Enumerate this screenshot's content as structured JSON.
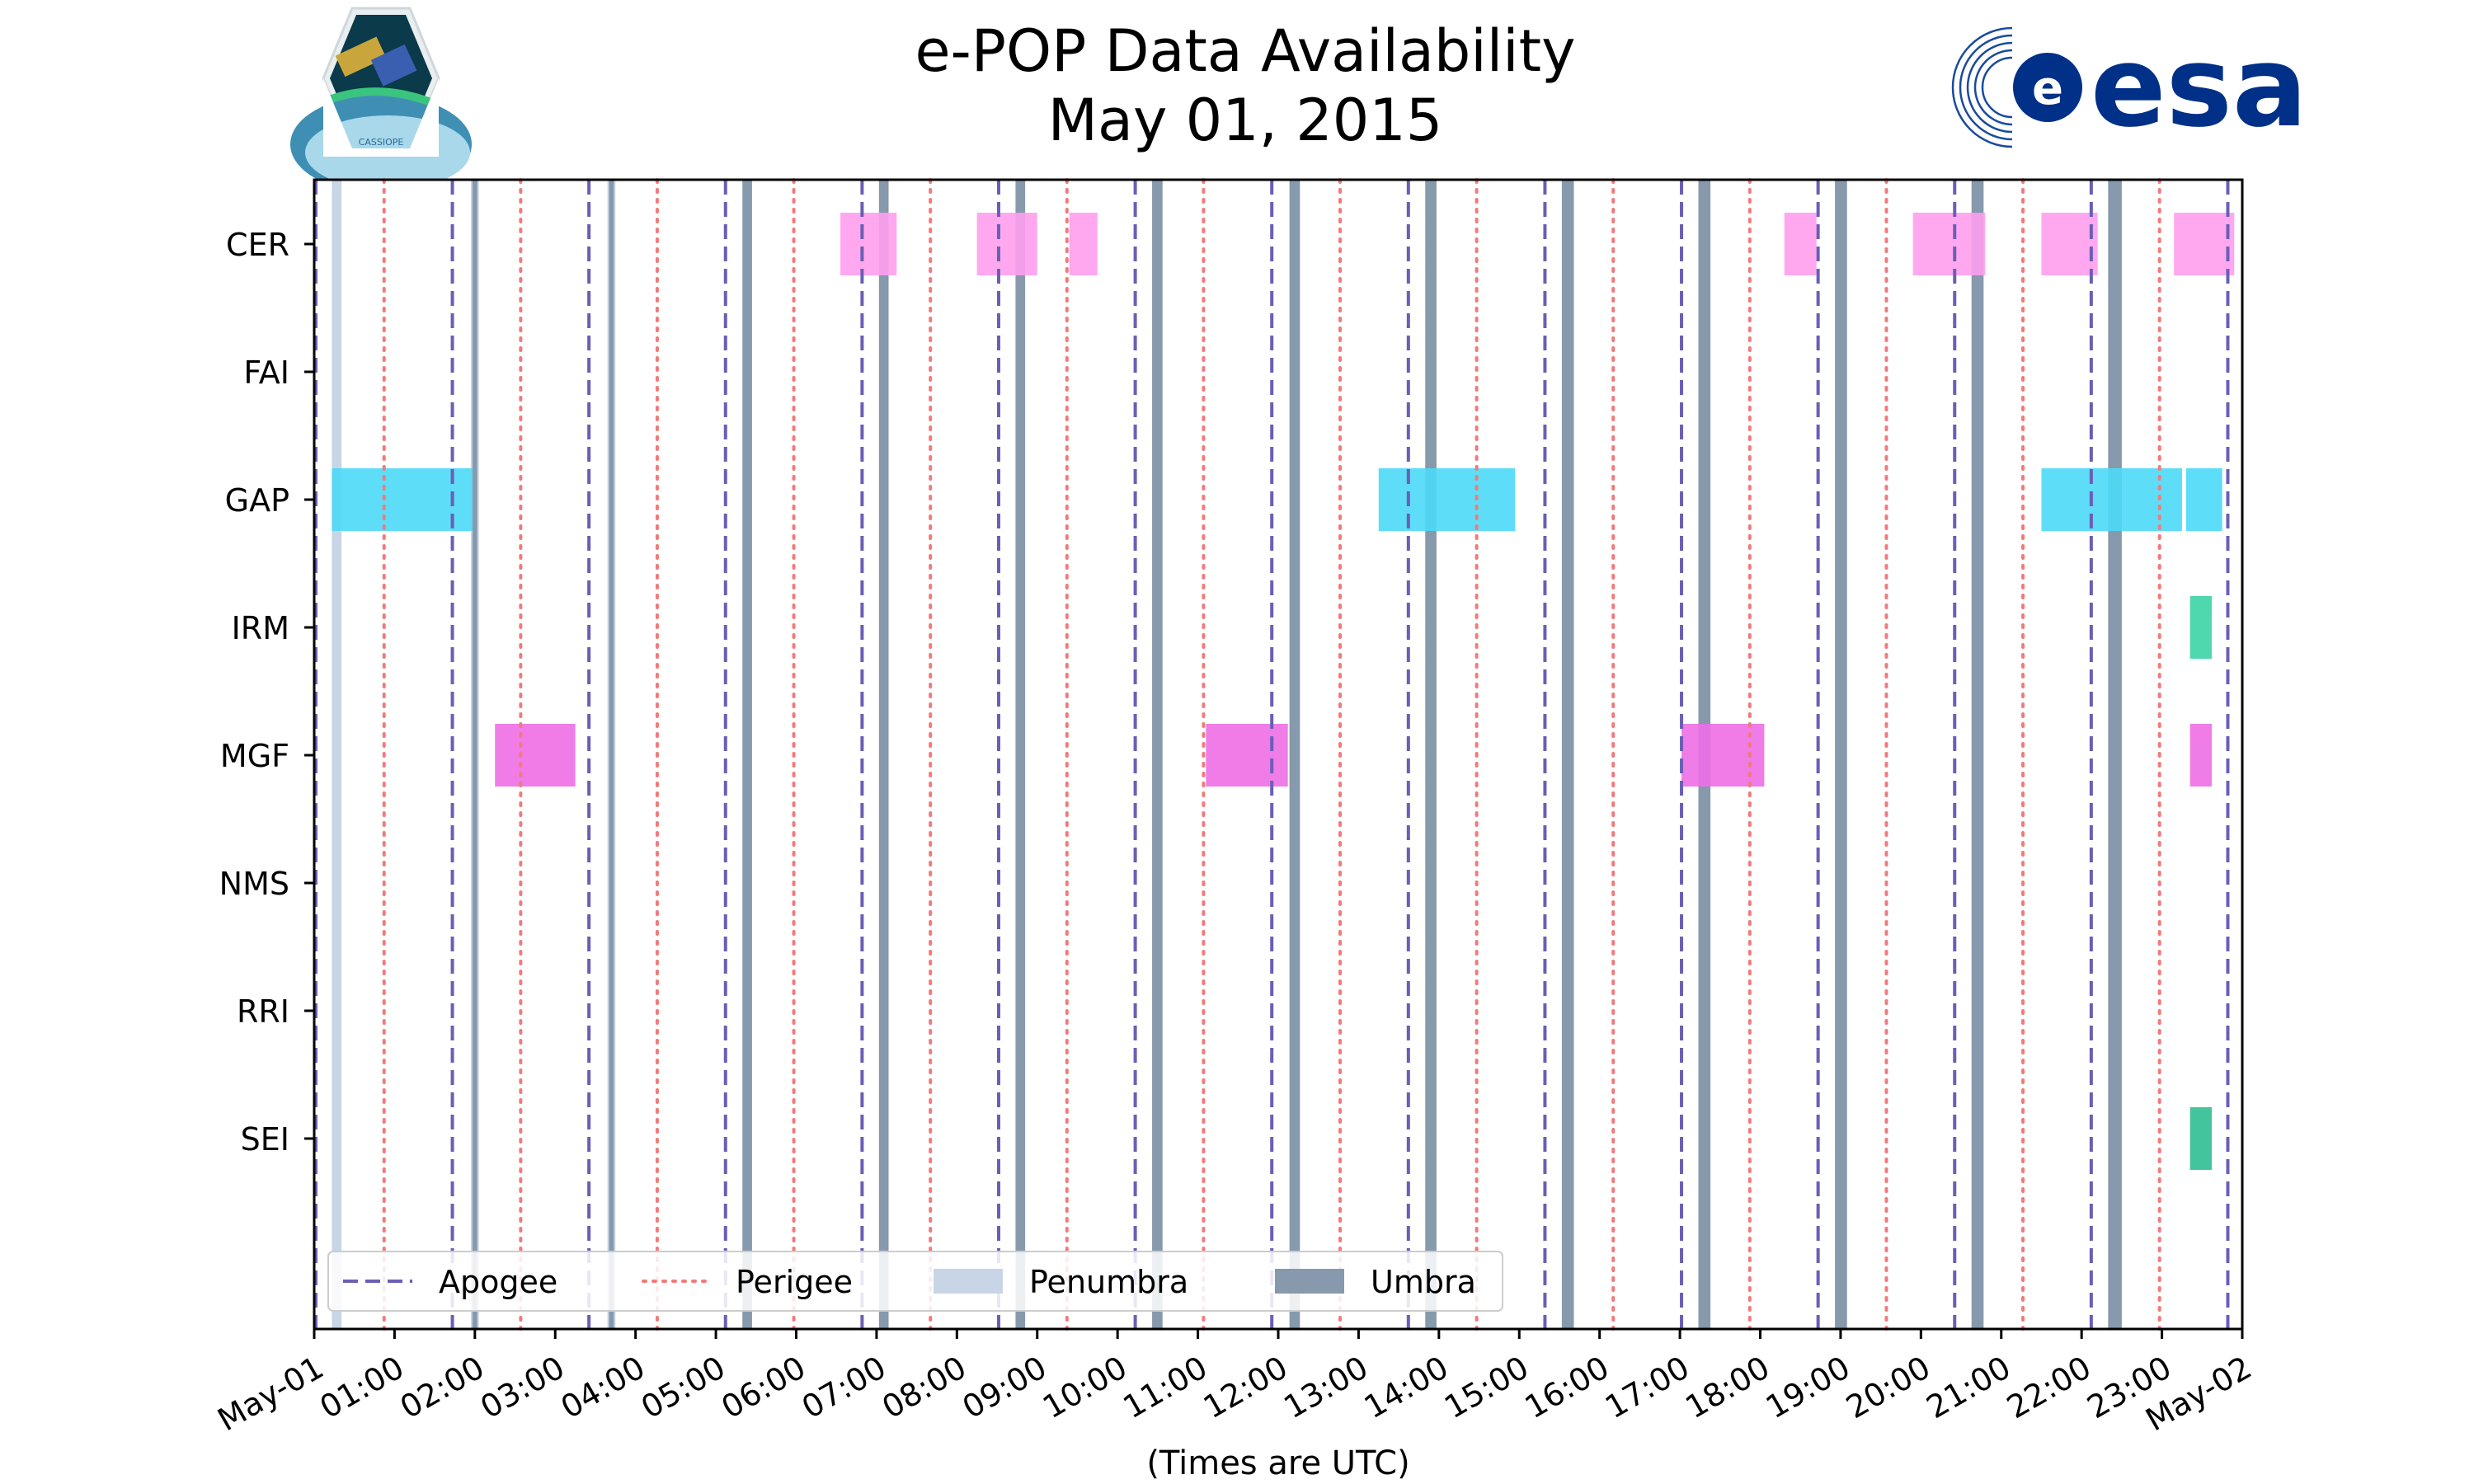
{
  "chart_data": {
    "type": "timeline",
    "title": [
      "e-POP Data Availability",
      "May 01, 2015"
    ],
    "xlabel": "(Times are UTC)",
    "x_unit": "hours",
    "xlim": [
      0,
      24
    ],
    "x_tick_values": [
      0,
      1,
      2,
      3,
      4,
      5,
      6,
      7,
      8,
      9,
      10,
      11,
      12,
      13,
      14,
      15,
      16,
      17,
      18,
      19,
      20,
      21,
      22,
      23,
      24
    ],
    "x_tick_labels": [
      "May-01",
      "01:00",
      "02:00",
      "03:00",
      "04:00",
      "05:00",
      "06:00",
      "07:00",
      "08:00",
      "09:00",
      "10:00",
      "11:00",
      "12:00",
      "13:00",
      "14:00",
      "15:00",
      "16:00",
      "17:00",
      "18:00",
      "19:00",
      "20:00",
      "21:00",
      "22:00",
      "23:00",
      "May-02"
    ],
    "instruments": [
      "CER",
      "FAI",
      "GAP",
      "IRM",
      "MGF",
      "NMS",
      "RRI",
      "SEI"
    ],
    "apogee_hours": [
      0.02,
      1.72,
      3.42,
      5.12,
      6.82,
      8.52,
      10.22,
      11.92,
      13.62,
      15.32,
      17.02,
      18.72,
      20.42,
      22.12,
      23.82
    ],
    "perigee_hours": [
      0.87,
      2.57,
      4.27,
      5.97,
      7.67,
      9.37,
      11.07,
      12.77,
      14.47,
      16.17,
      17.87,
      19.57,
      21.27,
      22.97
    ],
    "penumbra": [
      [
        0.22,
        0.34
      ],
      [
        1.95,
        2.05
      ],
      [
        3.65,
        3.75
      ],
      [
        5.36,
        5.44
      ],
      [
        7.06,
        7.14
      ],
      [
        8.76,
        8.84
      ],
      [
        10.46,
        10.54
      ],
      [
        12.17,
        12.25
      ],
      [
        13.86,
        13.94
      ],
      [
        15.56,
        15.64
      ],
      [
        17.26,
        17.34
      ],
      [
        18.96,
        19.04
      ],
      [
        20.66,
        20.74
      ],
      [
        22.36,
        22.44
      ]
    ],
    "umbra": [
      [
        1.97,
        2.03
      ],
      [
        3.67,
        3.73
      ],
      [
        5.33,
        5.45
      ],
      [
        7.03,
        7.15
      ],
      [
        8.73,
        8.85
      ],
      [
        10.43,
        10.56
      ],
      [
        12.14,
        12.27
      ],
      [
        13.83,
        13.97
      ],
      [
        15.53,
        15.68
      ],
      [
        17.23,
        17.38
      ],
      [
        18.93,
        19.08
      ],
      [
        20.63,
        20.78
      ],
      [
        22.33,
        22.5
      ]
    ],
    "coverage": [
      {
        "instrument": "CER",
        "color": "#FF9EEE",
        "intervals": [
          [
            6.55,
            7.25
          ],
          [
            8.25,
            9.0
          ],
          [
            9.4,
            9.75
          ],
          [
            18.3,
            18.7
          ],
          [
            19.9,
            20.8
          ],
          [
            21.5,
            22.2
          ],
          [
            23.15,
            23.9
          ]
        ]
      },
      {
        "instrument": "GAP",
        "color": "#4DD9F7",
        "intervals": [
          [
            0.22,
            1.97
          ],
          [
            13.25,
            14.95
          ],
          [
            21.5,
            23.25
          ],
          [
            23.3,
            23.75
          ]
        ]
      },
      {
        "instrument": "IRM",
        "color": "#3CD3A4",
        "intervals": [
          [
            23.35,
            23.62
          ]
        ]
      },
      {
        "instrument": "MGF",
        "color": "#EE6EE6",
        "intervals": [
          [
            2.25,
            3.25
          ],
          [
            11.1,
            12.12
          ],
          [
            17.02,
            18.05
          ],
          [
            23.35,
            23.62
          ]
        ]
      },
      {
        "instrument": "SEI",
        "color": "#2FBE92",
        "intervals": [
          [
            23.35,
            23.62
          ]
        ]
      }
    ],
    "legend": [
      {
        "label": "Apogee",
        "style": "dashed",
        "color": "#6A5FB5"
      },
      {
        "label": "Perigee",
        "style": "dotted",
        "color": "#F27A7A"
      },
      {
        "label": "Penumbra",
        "style": "patch",
        "color": "#C8D5E6"
      },
      {
        "label": "Umbra",
        "style": "patch",
        "color": "#8799AC"
      }
    ],
    "legend_position": "lower-left",
    "logos": {
      "left": "CASSIOPE",
      "right": "esa"
    }
  }
}
